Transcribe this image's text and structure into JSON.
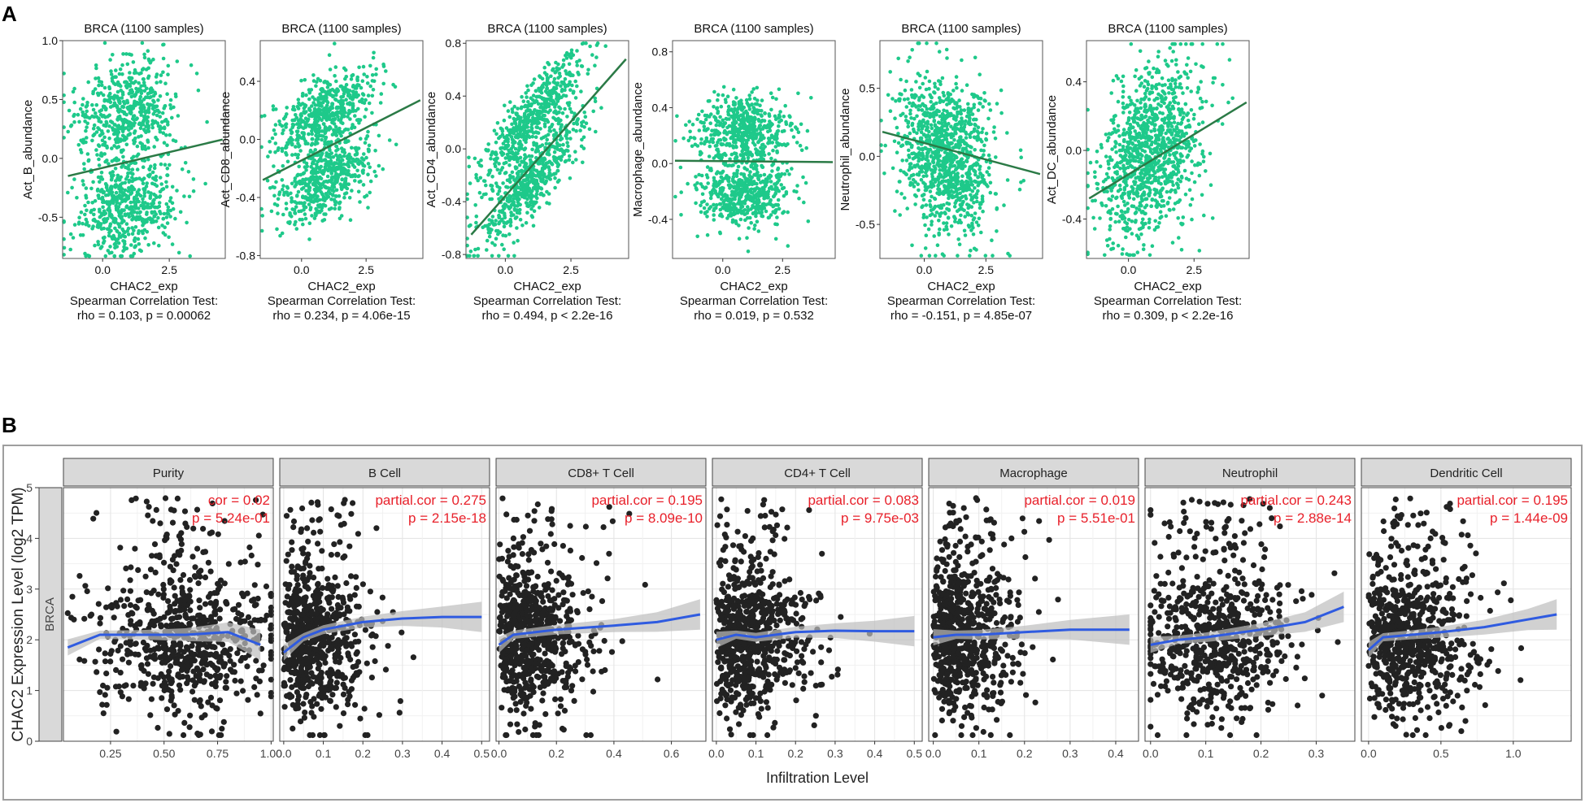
{
  "panel_labels": {
    "a": "A",
    "b": "B"
  },
  "colors": {
    "point_a": "#1ec98a",
    "line_a": "#2b7a46",
    "point_b": "#222222",
    "smooth_b": "#2f5be0",
    "band_b": "#bdbdbd",
    "annotation_b": "#e8202a"
  },
  "chart_data": [
    {
      "id": "A1",
      "type": "scatter",
      "title": "BRCA (1100 samples)",
      "xlabel": "CHAC2_exp",
      "ylabel": "Act_B_abundance",
      "xlim": [
        -1.5,
        4.6
      ],
      "ylim": [
        -0.85,
        1.0
      ],
      "xticks": [
        0,
        2.5
      ],
      "xtick_labels": [
        "0.0",
        "2.5"
      ],
      "yticks": [
        -0.5,
        0,
        0.5,
        1.0
      ],
      "ytick_labels": [
        "-0.5",
        "0.0",
        "0.5",
        "1.0"
      ],
      "fit_line": {
        "x": [
          -1.3,
          4.5
        ],
        "y": [
          -0.15,
          0.16
        ]
      },
      "point_cloud": {
        "x_center": 0.9,
        "x_spread": 0.95,
        "y_center": 0.0,
        "y_spread": 0.55,
        "slope": 0.05,
        "bimodal": true
      },
      "stat_label": "Spearman Correlation Test:",
      "stat": "rho = 0.103, p = 0.00062"
    },
    {
      "id": "A2",
      "type": "scatter",
      "title": "BRCA (1100 samples)",
      "xlabel": "CHAC2_exp",
      "ylabel": "Act_CD8_abundance",
      "xlim": [
        -1.6,
        4.7
      ],
      "ylim": [
        -0.82,
        0.68
      ],
      "xticks": [
        0,
        2.5
      ],
      "xtick_labels": [
        "0.0",
        "2.5"
      ],
      "yticks": [
        -0.8,
        -0.4,
        0,
        0.4
      ],
      "ytick_labels": [
        "-0.8",
        "-0.4",
        "0.0",
        "0.4"
      ],
      "fit_line": {
        "x": [
          -1.5,
          4.6
        ],
        "y": [
          -0.28,
          0.27
        ]
      },
      "point_cloud": {
        "x_center": 0.9,
        "x_spread": 0.95,
        "y_center": -0.05,
        "y_spread": 0.3,
        "slope": 0.09,
        "bimodal": true
      },
      "stat_label": "Spearman Correlation Test:",
      "stat": "rho = 0.234, p = 4.06e-15"
    },
    {
      "id": "A3",
      "type": "scatter",
      "title": "BRCA (1100 samples)",
      "xlabel": "CHAC2_exp",
      "ylabel": "Act_CD4_abundance",
      "xlim": [
        -1.5,
        4.7
      ],
      "ylim": [
        -0.83,
        0.82
      ],
      "xticks": [
        0,
        2.5
      ],
      "xtick_labels": [
        "0.0",
        "2.5"
      ],
      "yticks": [
        -0.8,
        -0.4,
        0,
        0.4,
        0.8
      ],
      "ytick_labels": [
        "-0.8",
        "-0.4",
        "0.0",
        "0.4",
        "0.8"
      ],
      "fit_line": {
        "x": [
          -1.3,
          4.6
        ],
        "y": [
          -0.65,
          0.68
        ]
      },
      "point_cloud": {
        "x_center": 1.0,
        "x_spread": 0.95,
        "y_center": 0.0,
        "y_spread": 0.32,
        "slope": 0.22,
        "bimodal": true
      },
      "stat_label": "Spearman Correlation Test:",
      "stat": "rho = 0.494, p < 2.2e-16"
    },
    {
      "id": "A4",
      "type": "scatter",
      "title": "BRCA (1100 samples)",
      "xlabel": "CHAC2_exp",
      "ylabel": "Macrophage_abundance",
      "xlim": [
        -2.1,
        4.7
      ],
      "ylim": [
        -0.68,
        0.88
      ],
      "xticks": [
        0,
        2.5
      ],
      "xtick_labels": [
        "0.0",
        "2.5"
      ],
      "yticks": [
        -0.4,
        0,
        0.4,
        0.8
      ],
      "ytick_labels": [
        "-0.4",
        "0.0",
        "0.4",
        "0.8"
      ],
      "fit_line": {
        "x": [
          -2.0,
          4.6
        ],
        "y": [
          0.02,
          0.01
        ]
      },
      "point_cloud": {
        "x_center": 0.9,
        "x_spread": 0.95,
        "y_center": 0.02,
        "y_spread": 0.3,
        "slope": 0.0,
        "bimodal": true
      },
      "stat_label": "Spearman Correlation Test:",
      "stat": "rho = 0.019, p = 0.532"
    },
    {
      "id": "A5",
      "type": "scatter",
      "title": "BRCA (1100 samples)",
      "xlabel": "CHAC2_exp",
      "ylabel": "Neutrophil_abundance",
      "xlim": [
        -1.8,
        4.8
      ],
      "ylim": [
        -0.75,
        0.85
      ],
      "xticks": [
        0,
        2.5
      ],
      "xtick_labels": [
        "0.0",
        "2.5"
      ],
      "yticks": [
        -0.5,
        0,
        0.5
      ],
      "ytick_labels": [
        "-0.5",
        "0.0",
        "0.5"
      ],
      "fit_line": {
        "x": [
          -1.7,
          4.7
        ],
        "y": [
          0.18,
          -0.13
        ]
      },
      "point_cloud": {
        "x_center": 0.9,
        "x_spread": 0.95,
        "y_center": 0.0,
        "y_spread": 0.28,
        "slope": -0.05,
        "bimodal": false
      },
      "stat_label": "Spearman Correlation Test:",
      "stat": "rho = -0.151, p = 4.85e-07"
    },
    {
      "id": "A6",
      "type": "scatter",
      "title": "BRCA (1100 samples)",
      "xlabel": "CHAC2_exp",
      "ylabel": "Act_DC_abundance",
      "xlim": [
        -1.6,
        4.6
      ],
      "ylim": [
        -0.63,
        0.64
      ],
      "xticks": [
        0,
        2.5
      ],
      "xtick_labels": [
        "0.0",
        "2.5"
      ],
      "yticks": [
        -0.4,
        0,
        0.4
      ],
      "ytick_labels": [
        "-0.4",
        "0.0",
        "0.4"
      ],
      "fit_line": {
        "x": [
          -1.5,
          4.5
        ],
        "y": [
          -0.28,
          0.28
        ]
      },
      "point_cloud": {
        "x_center": 0.9,
        "x_spread": 0.95,
        "y_center": 0.0,
        "y_spread": 0.24,
        "slope": 0.09,
        "bimodal": false
      },
      "stat_label": "Spearman Correlation Test:",
      "stat": "rho = 0.309, p < 2.2e-16"
    },
    {
      "id": "B",
      "type": "scatter",
      "row_strip": "BRCA",
      "xlabel": "Infiltration Level",
      "ylabel": "CHAC2 Expression Level (log2 TPM)",
      "ylim": [
        0,
        5
      ],
      "yticks": [
        0,
        1,
        2,
        3,
        4,
        5
      ],
      "ytick_labels": [
        "0",
        "1",
        "2",
        "3",
        "4",
        "5"
      ],
      "facets": [
        {
          "name": "Purity",
          "xlim": [
            0.03,
            1.01
          ],
          "xticks": [
            0.25,
            0.5,
            0.75,
            1.0
          ],
          "xtick_labels": [
            "0.25",
            "0.50",
            "0.75",
            "1.00"
          ],
          "annotation": [
            "cor = 0.02",
            "p = 5.24e-01"
          ],
          "smooth": {
            "x": [
              0.05,
              0.2,
              0.4,
              0.6,
              0.8,
              0.95
            ],
            "y": [
              1.85,
              2.1,
              2.1,
              2.1,
              2.15,
              1.9
            ]
          },
          "point_cloud": {
            "x_center": 0.6,
            "x_spread": 0.2,
            "x_min": 0.05,
            "x_max": 1.0,
            "skew": false
          }
        },
        {
          "name": "B Cell",
          "xlim": [
            -0.01,
            0.52
          ],
          "xticks": [
            0.0,
            0.1,
            0.2,
            0.3,
            0.4,
            0.5
          ],
          "xtick_labels": [
            "0.0",
            "0.1",
            "0.2",
            "0.3",
            "0.4",
            "0.5"
          ],
          "annotation": [
            "partial.cor = 0.275",
            "p = 2.15e-18"
          ],
          "smooth": {
            "x": [
              0.0,
              0.05,
              0.1,
              0.2,
              0.3,
              0.4,
              0.5
            ],
            "y": [
              1.75,
              2.05,
              2.2,
              2.35,
              2.42,
              2.45,
              2.45
            ]
          },
          "point_cloud": {
            "x_center": 0.08,
            "x_spread": 0.08,
            "x_min": 0.0,
            "x_max": 0.5,
            "skew": true
          }
        },
        {
          "name": "CD8+ T Cell",
          "xlim": [
            -0.01,
            0.72
          ],
          "xticks": [
            0.0,
            0.2,
            0.4,
            0.6
          ],
          "xtick_labels": [
            "0.0",
            "0.2",
            "0.4",
            "0.6"
          ],
          "annotation": [
            "partial.cor = 0.195",
            "p = 8.09e-10"
          ],
          "smooth": {
            "x": [
              0.0,
              0.05,
              0.2,
              0.4,
              0.55,
              0.7
            ],
            "y": [
              1.9,
              2.1,
              2.2,
              2.28,
              2.35,
              2.5
            ]
          },
          "point_cloud": {
            "x_center": 0.12,
            "x_spread": 0.12,
            "x_min": 0.0,
            "x_max": 0.7,
            "skew": true
          }
        },
        {
          "name": "CD4+ T Cell",
          "xlim": [
            -0.01,
            0.52
          ],
          "xticks": [
            0.0,
            0.1,
            0.2,
            0.3,
            0.4,
            0.5
          ],
          "xtick_labels": [
            "0.0",
            "0.1",
            "0.2",
            "0.3",
            "0.4",
            "0.5"
          ],
          "annotation": [
            "partial.cor = 0.083",
            "p = 9.75e-03"
          ],
          "smooth": {
            "x": [
              0.0,
              0.05,
              0.1,
              0.2,
              0.3,
              0.4,
              0.5
            ],
            "y": [
              2.0,
              2.1,
              2.05,
              2.15,
              2.18,
              2.17,
              2.17
            ]
          },
          "point_cloud": {
            "x_center": 0.1,
            "x_spread": 0.09,
            "x_min": 0.0,
            "x_max": 0.5,
            "skew": true
          }
        },
        {
          "name": "Macrophage",
          "xlim": [
            -0.01,
            0.45
          ],
          "xticks": [
            0.0,
            0.1,
            0.2,
            0.3,
            0.4
          ],
          "xtick_labels": [
            "0.0",
            "0.1",
            "0.2",
            "0.3",
            "0.4"
          ],
          "annotation": [
            "partial.cor = 0.019",
            "p = 5.51e-01"
          ],
          "smooth": {
            "x": [
              0.0,
              0.05,
              0.1,
              0.2,
              0.3,
              0.43
            ],
            "y": [
              2.05,
              2.1,
              2.1,
              2.15,
              2.2,
              2.2
            ]
          },
          "point_cloud": {
            "x_center": 0.08,
            "x_spread": 0.07,
            "x_min": 0.0,
            "x_max": 0.43,
            "skew": true
          }
        },
        {
          "name": "Neutrophil",
          "xlim": [
            -0.01,
            0.37
          ],
          "xticks": [
            0.0,
            0.1,
            0.2,
            0.3
          ],
          "xtick_labels": [
            "0.0",
            "0.1",
            "0.2",
            "0.3"
          ],
          "annotation": [
            "partial.cor = 0.243",
            "p = 2.88e-14"
          ],
          "smooth": {
            "x": [
              0.0,
              0.05,
              0.1,
              0.2,
              0.28,
              0.35
            ],
            "y": [
              1.9,
              2.0,
              2.05,
              2.2,
              2.35,
              2.65
            ]
          },
          "point_cloud": {
            "x_center": 0.12,
            "x_spread": 0.07,
            "x_min": 0.0,
            "x_max": 0.36,
            "skew": false
          }
        },
        {
          "name": "Dendritic Cell",
          "xlim": [
            -0.05,
            1.4
          ],
          "xticks": [
            0.0,
            0.5,
            1.0
          ],
          "xtick_labels": [
            "0.0",
            "0.5",
            "1.0"
          ],
          "annotation": [
            "partial.cor = 0.195",
            "p = 1.44e-09"
          ],
          "smooth": {
            "x": [
              0.0,
              0.1,
              0.3,
              0.5,
              0.8,
              1.1,
              1.3
            ],
            "y": [
              1.8,
              2.05,
              2.1,
              2.15,
              2.25,
              2.4,
              2.5
            ]
          },
          "point_cloud": {
            "x_center": 0.35,
            "x_spread": 0.3,
            "x_min": 0.0,
            "x_max": 1.3,
            "skew": true
          }
        }
      ]
    }
  ]
}
